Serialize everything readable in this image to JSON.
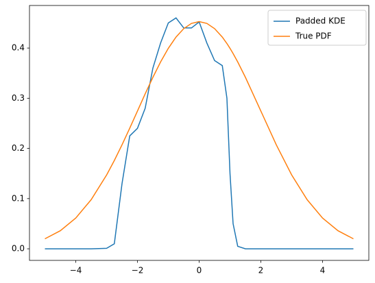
{
  "chart_data": {
    "type": "line",
    "x": [
      -5,
      -4.5,
      -4,
      -3.5,
      -3,
      -2.75,
      -2.5,
      -2.25,
      -2,
      -1.75,
      -1.5,
      -1.25,
      -1,
      -0.75,
      -0.5,
      -0.25,
      0,
      0.25,
      0.5,
      0.75,
      0.9,
      1,
      1.1,
      1.25,
      1.5,
      2,
      2.5,
      3,
      3.5,
      4,
      4.5,
      5
    ],
    "series": [
      {
        "name": "Padded KDE",
        "color": "#1f77b4",
        "values": [
          0,
          0,
          0,
          0,
          0.001,
          0.01,
          0.13,
          0.225,
          0.24,
          0.28,
          0.36,
          0.41,
          0.45,
          0.46,
          0.44,
          0.44,
          0.452,
          0.41,
          0.375,
          0.365,
          0.3,
          0.15,
          0.05,
          0.005,
          0,
          0,
          0,
          0,
          0,
          0,
          0,
          0
        ]
      },
      {
        "name": "True PDF",
        "color": "#ff7f0e",
        "values": [
          0.0199,
          0.036,
          0.0612,
          0.0979,
          0.147,
          0.1759,
          0.2072,
          0.2403,
          0.2745,
          0.3087,
          0.3416,
          0.3723,
          0.3994,
          0.4219,
          0.4387,
          0.4491,
          0.4526,
          0.4491,
          0.4387,
          0.4219,
          0.409,
          0.3994,
          0.3891,
          0.3723,
          0.3416,
          0.2745,
          0.2072,
          0.147,
          0.0979,
          0.0612,
          0.036,
          0.0199
        ]
      }
    ],
    "xlim": [
      -5.5,
      5.5
    ],
    "ylim": [
      -0.0231,
      0.4848
    ],
    "xticks": [
      {
        "value": -4,
        "label": "−4"
      },
      {
        "value": -2,
        "label": "−2"
      },
      0,
      2,
      4
    ],
    "yticks": [
      {
        "value": 0,
        "label": "0.0"
      },
      0.1,
      0.2,
      0.3,
      0.4
    ],
    "legend": "upper right"
  }
}
